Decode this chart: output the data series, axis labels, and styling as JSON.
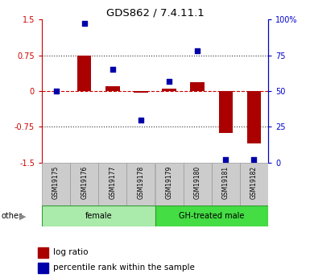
{
  "title": "GDS862 / 7.4.11.1",
  "samples": [
    "GSM19175",
    "GSM19176",
    "GSM19177",
    "GSM19178",
    "GSM19179",
    "GSM19180",
    "GSM19181",
    "GSM19182"
  ],
  "log_ratio": [
    0.0,
    0.75,
    0.1,
    -0.04,
    0.05,
    0.18,
    -0.88,
    -1.1
  ],
  "percentile_rank": [
    50,
    97,
    65,
    30,
    57,
    78,
    2,
    2
  ],
  "groups": [
    {
      "label": "female",
      "start": 0,
      "end": 4,
      "color": "#aaeaaa"
    },
    {
      "label": "GH-treated male",
      "start": 4,
      "end": 8,
      "color": "#44dd44"
    }
  ],
  "ylim_left": [
    -1.5,
    1.5
  ],
  "ylim_right": [
    0,
    100
  ],
  "yticks_left": [
    -1.5,
    -0.75,
    0,
    0.75,
    1.5
  ],
  "ytick_labels_left": [
    "-1.5",
    "-0.75",
    "0",
    "0.75",
    "1.5"
  ],
  "yticks_right": [
    0,
    25,
    50,
    75,
    100
  ],
  "ytick_labels_right": [
    "0",
    "25",
    "50",
    "75",
    "100%"
  ],
  "bar_color": "#AA0000",
  "dot_color": "#0000AA",
  "hline_color": "#CC0000",
  "dotted_color": "#333333",
  "left_axis_color": "#CC0000",
  "right_axis_color": "#0000CC",
  "legend_bar_label": "log ratio",
  "legend_dot_label": "percentile rank within the sample",
  "other_label": "other",
  "bar_width": 0.5,
  "dot_size": 22
}
